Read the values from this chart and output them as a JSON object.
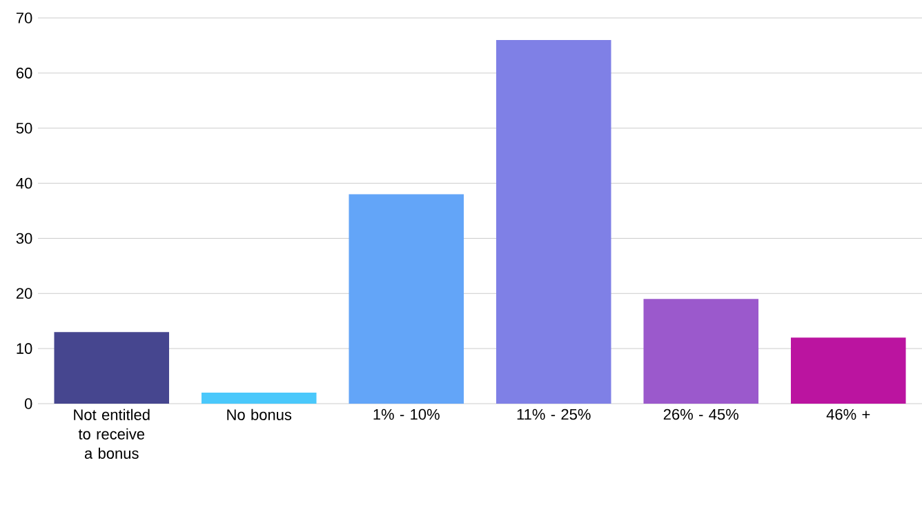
{
  "chart_data": {
    "type": "bar",
    "categories": [
      "Not entitled to receive a bonus",
      "No bonus",
      "1% - 10%",
      "11% - 25%",
      "26% - 45%",
      "46% +"
    ],
    "values": [
      13,
      2,
      38,
      66,
      19,
      12
    ],
    "colors": [
      "#46468f",
      "#4ac8fb",
      "#63a5f8",
      "#7f80e6",
      "#9b59cc",
      "#bb14a0"
    ],
    "ylim": [
      0,
      70
    ],
    "yticks": [
      0,
      10,
      20,
      30,
      40,
      50,
      60,
      70
    ],
    "grid": "y"
  }
}
